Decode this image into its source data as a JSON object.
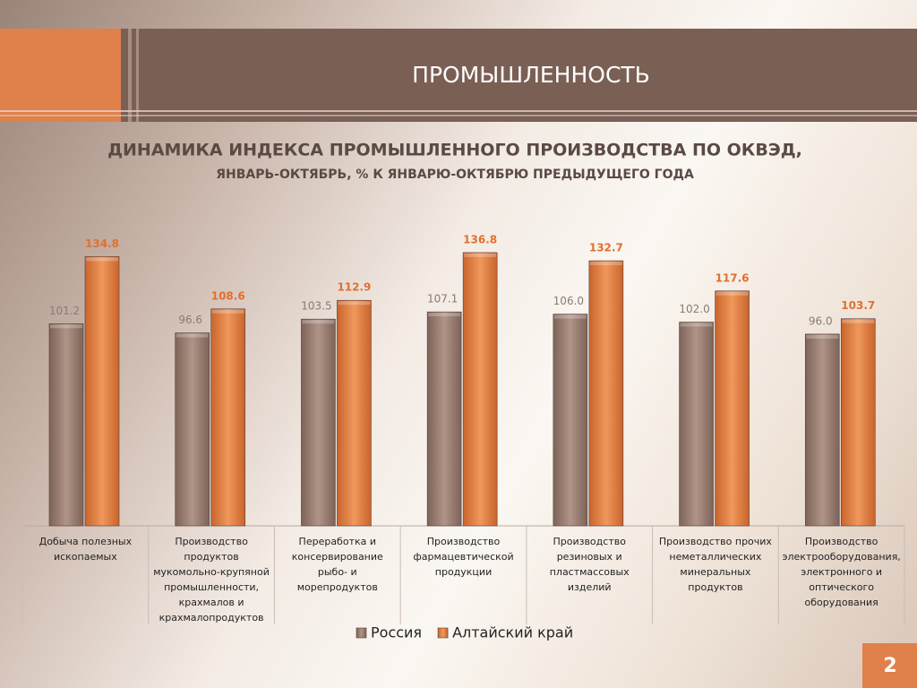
{
  "header": {
    "title": "ПРОМЫШЛЕННОСТЬ"
  },
  "footer": {
    "page_number": "2"
  },
  "chart_data": {
    "type": "bar",
    "title": "ДИНАМИКА ИНДЕКСА ПРОМЫШЛЕННОГО ПРОИЗВОДСТВА ПО ОКВЭД,",
    "subtitle": "ЯНВАРЬ-ОКТЯБРЬ, % К ЯНВАРЮ-ОКТЯБРЮ ПРЕДЫДУЩЕГО ГОДА",
    "categories": [
      "Добыча полезных ископаемых",
      "Производство продуктов мукомольно-крупяной промышленности, крахмалов и крахмалопродуктов",
      "Переработка и консервирование рыбо- и морепродуктов",
      "Производство фармацевтической продукции",
      "Производство резиновых и пластмассовых изделий",
      "Производство прочих неметаллических минеральных продуктов",
      "Производство электрооборудования, электронного и оптического оборудования"
    ],
    "series": [
      {
        "name": "Россия",
        "color": "#a08276",
        "label_color": "#8a7a72",
        "values": [
          101.2,
          96.6,
          103.5,
          107.1,
          106.0,
          102.0,
          96.0
        ],
        "value_labels": [
          "101.2",
          "96.6",
          "103.5",
          "107.1",
          "106.0",
          "102.0",
          "96.0"
        ]
      },
      {
        "name": "Алтайский край",
        "color": "#e8894e",
        "label_color": "#e07030",
        "values": [
          134.8,
          108.6,
          112.9,
          136.8,
          132.7,
          117.6,
          103.7
        ],
        "value_labels": [
          "134.8",
          "108.6",
          "112.9",
          "136.8",
          "132.7",
          "117.6",
          "103.7"
        ]
      }
    ],
    "ylim": [
      0,
      150
    ],
    "legend": "bottom"
  }
}
